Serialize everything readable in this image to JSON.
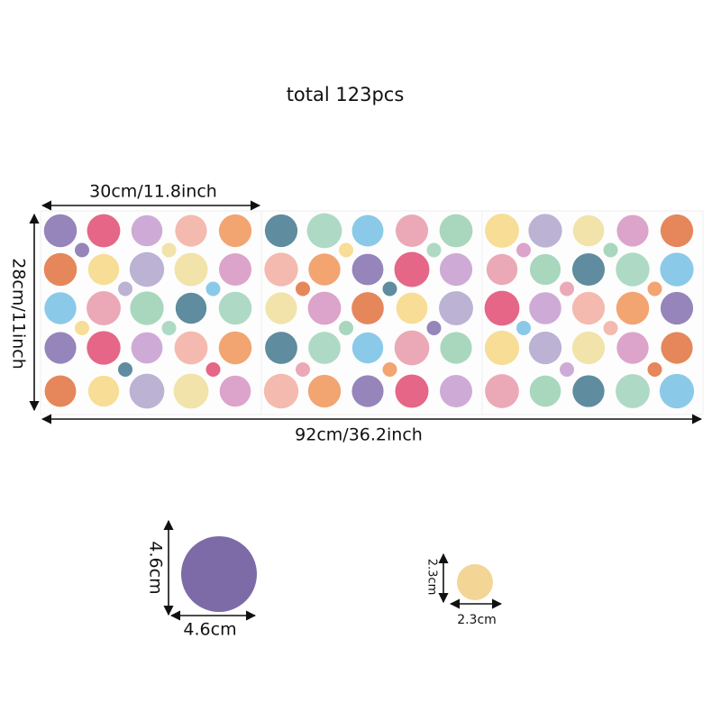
{
  "header": {
    "title": "total 123pcs"
  },
  "dimensions": {
    "sheet_width": "30cm/11.8inch",
    "sheet_height": "28cm/11inch",
    "total_width": "92cm/36.2inch"
  },
  "large_dot": {
    "height": "4.6cm",
    "width": "4.6cm"
  },
  "small_dot": {
    "height": "2.3cm",
    "width": "2.3cm"
  }
}
